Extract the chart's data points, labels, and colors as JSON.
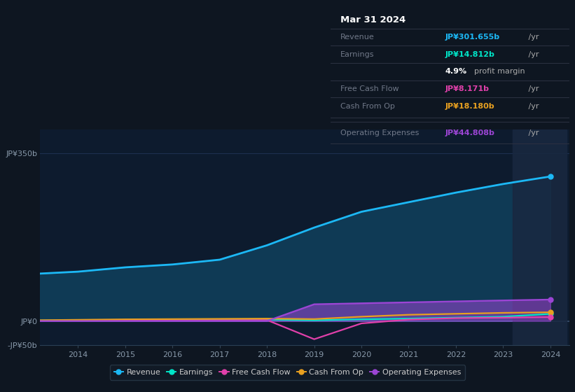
{
  "background_color": "#0e1621",
  "plot_bg_color": "#0d1b2e",
  "years": [
    2013,
    2014,
    2015,
    2016,
    2017,
    2018,
    2019,
    2020,
    2021,
    2022,
    2023,
    2024
  ],
  "revenue": [
    98,
    103,
    112,
    118,
    128,
    158,
    195,
    228,
    248,
    268,
    286,
    301.655
  ],
  "earnings": [
    1.0,
    1.5,
    2.0,
    2.5,
    2.5,
    3.0,
    1.5,
    3.5,
    5.0,
    7.0,
    9.0,
    14.812
  ],
  "free_cash_flow": [
    0.5,
    1.0,
    1.2,
    1.5,
    1.8,
    2.0,
    -38,
    -5.0,
    3.0,
    6.0,
    7.0,
    8.171
  ],
  "cash_from_op": [
    1.5,
    2.5,
    3.5,
    4.0,
    4.5,
    5.0,
    4.0,
    9.0,
    13.0,
    15.0,
    17.0,
    18.18
  ],
  "operating_expenses": [
    0.0,
    0.0,
    0.0,
    0.0,
    0.0,
    0.0,
    35.0,
    37.0,
    39.0,
    41.0,
    43.0,
    44.808
  ],
  "ylim": [
    -50,
    400
  ],
  "yticks": [
    -50,
    0,
    350
  ],
  "ytick_labels": [
    "-JP¥50b",
    "JP¥0",
    "JP¥350b"
  ],
  "xticks": [
    2014,
    2015,
    2016,
    2017,
    2018,
    2019,
    2020,
    2021,
    2022,
    2023,
    2024
  ],
  "xtick_labels": [
    "2014",
    "2015",
    "2016",
    "2017",
    "2018",
    "2019",
    "2020",
    "2021",
    "2022",
    "2023",
    "2024"
  ],
  "revenue_color": "#1cb8f5",
  "earnings_color": "#00e5c8",
  "fcf_color": "#e040aa",
  "cashop_color": "#e8a020",
  "opex_color": "#9b45d4",
  "grid_color": "#1e3050",
  "zero_line_color": "#3a5070",
  "highlight_bg": "#192840",
  "tooltip": {
    "title": "Mar 31 2024",
    "revenue_label": "Revenue",
    "revenue_value": "JP¥301.655b",
    "earnings_label": "Earnings",
    "earnings_value": "JP¥14.812b",
    "margin_pct": "4.9%",
    "margin_text": "profit margin",
    "fcf_label": "Free Cash Flow",
    "fcf_value": "JP¥8.171b",
    "cashop_label": "Cash From Op",
    "cashop_value": "JP¥18.180b",
    "opex_label": "Operating Expenses",
    "opex_value": "JP¥44.808b",
    "yr_suffix": " /yr"
  },
  "legend_items": [
    "Revenue",
    "Earnings",
    "Free Cash Flow",
    "Cash From Op",
    "Operating Expenses"
  ]
}
